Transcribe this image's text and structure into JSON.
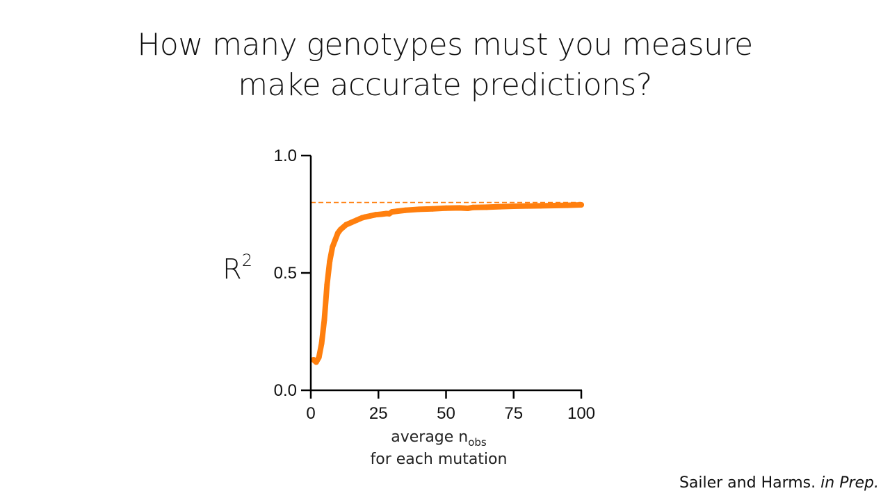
{
  "title": {
    "line1": "How many genotypes must you measure",
    "line2": "make accurate predictions?"
  },
  "citation": {
    "authors": "Sailer and Harms.",
    "status": "in Prep."
  },
  "colors": {
    "series": "#ff7f0e",
    "reference": "#ff7f0e",
    "axis": "#000000"
  },
  "chart_data": {
    "type": "line",
    "title": "",
    "ylabel": "R",
    "ylabel_superscript": "2",
    "xlabel_line1": "average n",
    "xlabel_subscript": "obs",
    "xlabel_line2": "for each mutation",
    "xlim": [
      0,
      100
    ],
    "ylim": [
      0,
      1
    ],
    "xticks": [
      0,
      25,
      50,
      75,
      100
    ],
    "xtick_labels": [
      "0",
      "25",
      "50",
      "75",
      "100"
    ],
    "yticks": [
      0,
      0.5,
      1
    ],
    "ytick_labels": [
      "0.0",
      "0.5",
      "1.0"
    ],
    "grid": false,
    "reference_line": {
      "y": 0.8,
      "style": "dashed"
    },
    "series": [
      {
        "x": [
          1,
          2,
          3,
          4,
          5,
          6,
          7,
          8,
          9,
          10,
          11,
          12,
          13,
          14,
          15,
          16,
          17,
          18,
          19,
          20,
          22,
          24,
          26,
          28,
          29,
          30,
          32,
          35,
          40,
          45,
          50,
          55,
          58,
          60,
          65,
          70,
          75,
          80,
          85,
          90,
          95,
          100
        ],
        "values": [
          0.13,
          0.12,
          0.14,
          0.2,
          0.3,
          0.45,
          0.55,
          0.61,
          0.64,
          0.67,
          0.685,
          0.695,
          0.705,
          0.71,
          0.715,
          0.72,
          0.725,
          0.73,
          0.735,
          0.738,
          0.743,
          0.748,
          0.75,
          0.753,
          0.752,
          0.76,
          0.763,
          0.767,
          0.771,
          0.773,
          0.776,
          0.777,
          0.775,
          0.779,
          0.78,
          0.782,
          0.784,
          0.785,
          0.786,
          0.787,
          0.788,
          0.79
        ]
      }
    ]
  }
}
